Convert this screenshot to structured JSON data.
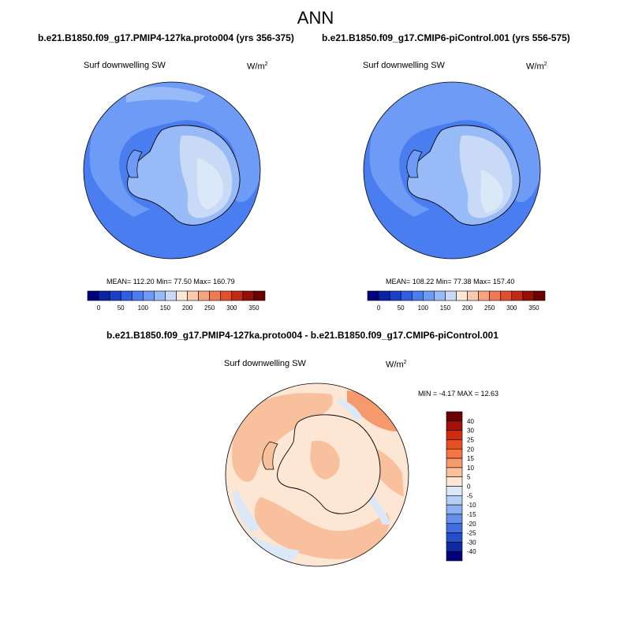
{
  "title": "ANN",
  "panels": {
    "left": {
      "case": "b.e21.B1850.f09_g17.PMIP4-127ka.proto004 (yrs 356-375)",
      "variable": "Surf downwelling SW",
      "units_base": "W/m",
      "units_exp": "2",
      "stats": "MEAN= 112.20  Min=  77.50  Max= 160.79"
    },
    "right": {
      "case": "b.e21.B1850.f09_g17.CMIP6-piControl.001 (yrs 556-575)",
      "variable": "Surf downwelling SW",
      "units_base": "W/m",
      "units_exp": "2",
      "stats": "MEAN= 108.22  Min=  77.38  Max= 157.40"
    },
    "diff": {
      "case": "b.e21.B1850.f09_g17.PMIP4-127ka.proto004 - b.e21.B1850.f09_g17.CMIP6-piControl.001",
      "variable": "Surf downwelling SW",
      "units_base": "W/m",
      "units_exp": "2",
      "stats": "MIN =  -4.17 MAX =  12.63"
    }
  },
  "colorbar_abs": {
    "colors": [
      "#00007f",
      "#0a23a5",
      "#1a40c8",
      "#2f5fe0",
      "#4a7ef0",
      "#6e9bf5",
      "#98baf7",
      "#c8daf6",
      "#fde8d8",
      "#fbc9ad",
      "#f6a47f",
      "#ee7a54",
      "#e0502f",
      "#c32a16",
      "#950f06",
      "#6a0000"
    ],
    "labels": [
      "0",
      "50",
      "100",
      "150",
      "200",
      "250",
      "300",
      "350"
    ]
  },
  "colorbar_diff": {
    "colors": [
      "#6a0000",
      "#a41007",
      "#cf2b10",
      "#e84f23",
      "#f27542",
      "#f69a6e",
      "#f8c09d",
      "#fde7d4",
      "#dbe8f7",
      "#b5cef4",
      "#8cb0f0",
      "#6490ea",
      "#3f6fe0",
      "#2350c8",
      "#0e2aa0",
      "#00007a"
    ],
    "labels": [
      "40",
      "30",
      "25",
      "20",
      "15",
      "10",
      "5",
      "0",
      "-5",
      "-10",
      "-15",
      "-20",
      "-25",
      "-30",
      "-40"
    ]
  },
  "map_colors": {
    "ocean": "#4a7ef0",
    "band": "#6e9bf5",
    "ice_light": "#98baf7",
    "ice_lighter": "#c8daf6",
    "ice_pale": "#dbe8f7",
    "diff_base": "#fde7d4",
    "diff_warm": "#f8c09d",
    "diff_warmer": "#f69a6e",
    "diff_cool": "#dbe8f7"
  }
}
